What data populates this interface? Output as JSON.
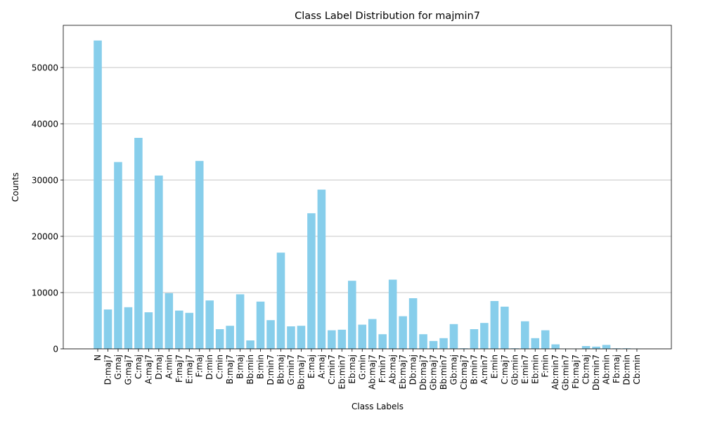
{
  "chart_data": {
    "type": "bar",
    "title": "Class Label Distribution for majmin7",
    "xlabel": "Class Labels",
    "ylabel": "Counts",
    "ylim": [
      0,
      57500
    ],
    "yticks": [
      0,
      10000,
      20000,
      30000,
      40000,
      50000
    ],
    "grid": "y",
    "bar_color": "#87ceeb",
    "categories": [
      "N",
      "D:maj7",
      "G:maj",
      "G:maj7",
      "C:maj",
      "A:maj7",
      "D:maj",
      "A:min",
      "F:maj7",
      "E:maj7",
      "F:maj",
      "D:min",
      "C:min",
      "B:maj7",
      "B:maj",
      "Bb:min",
      "B:min",
      "D:min7",
      "Bb:maj",
      "G:min7",
      "Bb:maj7",
      "E:maj",
      "A:maj",
      "C:min7",
      "Eb:min7",
      "Eb:maj",
      "G:min",
      "Ab:maj7",
      "F:min7",
      "Ab:maj",
      "Eb:maj7",
      "Db:maj",
      "Db:maj7",
      "Gb:maj7",
      "Bb:min7",
      "Gb:maj",
      "Cb:maj7",
      "B:min7",
      "A:min7",
      "E:min",
      "C:maj7",
      "Gb:min",
      "E:min7",
      "Eb:min",
      "F:min",
      "Ab:min7",
      "Gb:min7",
      "Fb:maj7",
      "Cb:maj",
      "Db:min7",
      "Ab:min",
      "Fb:maj",
      "Db:min",
      "Cb:min"
    ],
    "values": [
      54800,
      7000,
      33200,
      7400,
      37500,
      6500,
      30800,
      9900,
      6800,
      6400,
      33400,
      8600,
      3500,
      4100,
      9700,
      1500,
      8400,
      5100,
      17100,
      4000,
      4100,
      24100,
      28300,
      3300,
      3400,
      12100,
      4300,
      5300,
      2600,
      12300,
      5800,
      9000,
      2600,
      1400,
      1900,
      4400,
      100,
      3500,
      4600,
      8500,
      7500,
      100,
      4900,
      1900,
      3300,
      800,
      50,
      50,
      500,
      400,
      700,
      100,
      100,
      50
    ]
  }
}
